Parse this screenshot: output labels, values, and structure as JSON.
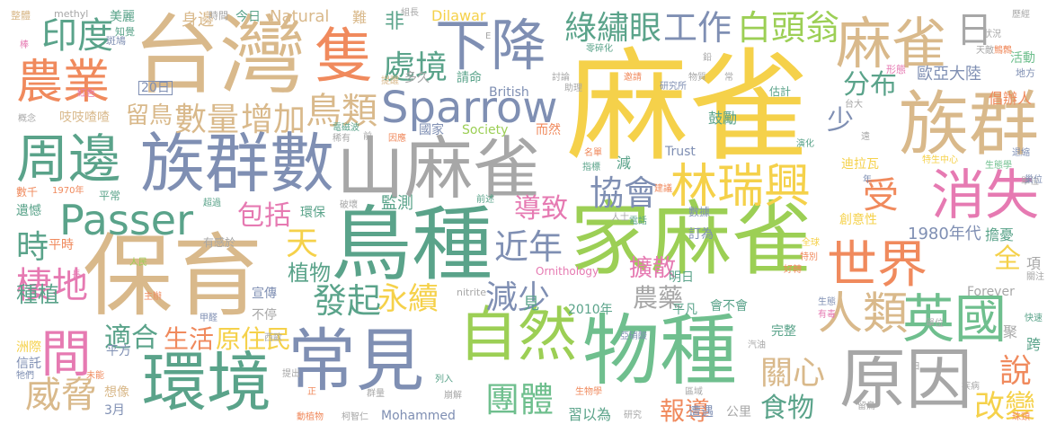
{
  "palette": {
    "gold": "#f5d14a",
    "tan": "#d9b98b",
    "green": "#6fbf8e",
    "teal": "#5aa38a",
    "slate": "#7f8fb3",
    "gray": "#a7a7a7",
    "pink": "#e67ab2",
    "orange": "#f08a5d",
    "lime": "#9ccf55"
  },
  "words": [
    {
      "text": "麻雀",
      "color": "gold"
    },
    {
      "text": "台灣",
      "color": "tan"
    },
    {
      "text": "保育",
      "color": "tan"
    },
    {
      "text": "鳥種",
      "color": "teal"
    },
    {
      "text": "家麻雀",
      "color": "lime"
    },
    {
      "text": "物種",
      "color": "green"
    },
    {
      "text": "族群",
      "color": "tan"
    },
    {
      "text": "山麻雀",
      "color": "gray"
    },
    {
      "text": "族群數",
      "color": "slate"
    },
    {
      "text": "常見",
      "color": "slate"
    },
    {
      "text": "環境",
      "color": "teal"
    },
    {
      "text": "原因",
      "color": "gray"
    },
    {
      "text": "自然",
      "color": "lime"
    },
    {
      "text": "隻",
      "color": "orange"
    },
    {
      "text": "下降",
      "color": "slate"
    },
    {
      "text": "麻雀",
      "color": "tan"
    },
    {
      "text": "周邊",
      "color": "teal"
    },
    {
      "text": "農業",
      "color": "orange"
    },
    {
      "text": "Sparrow",
      "color": "slate"
    },
    {
      "text": "Passer",
      "color": "teal"
    },
    {
      "text": "世界",
      "color": "orange"
    },
    {
      "text": "消失",
      "color": "pink"
    },
    {
      "text": "林瑞興",
      "color": "gold"
    },
    {
      "text": "英國",
      "color": "green"
    },
    {
      "text": "人類",
      "color": "tan"
    },
    {
      "text": "間",
      "color": "pink"
    },
    {
      "text": "印度",
      "color": "teal"
    },
    {
      "text": "綠繡眼",
      "color": "teal"
    },
    {
      "text": "工作",
      "color": "slate"
    },
    {
      "text": "白頭翁",
      "color": "lime"
    },
    {
      "text": "日",
      "color": "gray"
    },
    {
      "text": "處境",
      "color": "teal"
    },
    {
      "text": "鳥類",
      "color": "tan"
    },
    {
      "text": "數量",
      "color": "tan"
    },
    {
      "text": "增加",
      "color": "tan"
    },
    {
      "text": "留鳥",
      "color": "tan"
    },
    {
      "text": "協會",
      "color": "slate"
    },
    {
      "text": "棲地",
      "color": "pink"
    },
    {
      "text": "時",
      "color": "teal"
    },
    {
      "text": "威脅",
      "color": "tan"
    },
    {
      "text": "團體",
      "color": "green"
    },
    {
      "text": "發起",
      "color": "teal"
    },
    {
      "text": "永續",
      "color": "gold"
    },
    {
      "text": "減少",
      "color": "slate"
    },
    {
      "text": "導致",
      "color": "pink"
    },
    {
      "text": "近年",
      "color": "slate"
    },
    {
      "text": "包括",
      "color": "pink"
    },
    {
      "text": "受",
      "color": "orange"
    },
    {
      "text": "天",
      "color": "gold"
    },
    {
      "text": "關心",
      "color": "tan"
    },
    {
      "text": "說",
      "color": "orange"
    },
    {
      "text": "改變",
      "color": "gold"
    },
    {
      "text": "食物",
      "color": "teal"
    },
    {
      "text": "分布",
      "color": "teal"
    },
    {
      "text": "少",
      "color": "slate"
    },
    {
      "text": "生活",
      "color": "orange"
    },
    {
      "text": "原住民",
      "color": "gold"
    },
    {
      "text": "適合",
      "color": "teal"
    },
    {
      "text": "植物",
      "color": "teal"
    },
    {
      "text": "農藥",
      "color": "gray"
    },
    {
      "text": "擴散",
      "color": "pink"
    },
    {
      "text": "報導",
      "color": "orange"
    },
    {
      "text": "全",
      "color": "gold"
    },
    {
      "text": "種植",
      "color": "teal"
    },
    {
      "text": "歐亞大陸",
      "color": "slate"
    },
    {
      "text": "1980年代",
      "color": "slate"
    },
    {
      "text": "創意性",
      "color": "gold"
    },
    {
      "text": "迪拉瓦",
      "color": "gold"
    },
    {
      "text": "Natural",
      "color": "tan"
    },
    {
      "text": "Dilawar",
      "color": "gold"
    },
    {
      "text": "Society",
      "color": "lime"
    },
    {
      "text": "Trust",
      "color": "slate"
    },
    {
      "text": "British",
      "color": "slate"
    },
    {
      "text": "Mohammed",
      "color": "slate"
    },
    {
      "text": "Ornithology",
      "color": "pink"
    },
    {
      "text": "Forever",
      "color": "gray"
    },
    {
      "text": "methyl",
      "color": "gray"
    },
    {
      "text": "nitrite",
      "color": "gray"
    },
    {
      "text": "20日",
      "color": "slate"
    },
    {
      "text": "多久",
      "color": "gray"
    },
    {
      "text": "吱吱喳喳",
      "color": "tan"
    },
    {
      "text": "環保",
      "color": "teal"
    },
    {
      "text": "監測",
      "color": "teal"
    },
    {
      "text": "宣傳",
      "color": "slate"
    },
    {
      "text": "不停",
      "color": "gray"
    },
    {
      "text": "平常",
      "color": "teal"
    },
    {
      "text": "平時",
      "color": "orange"
    },
    {
      "text": "遺憾",
      "color": "teal"
    },
    {
      "text": "有感於",
      "color": "gray"
    },
    {
      "text": "數千",
      "color": "orange"
    },
    {
      "text": "1970年",
      "color": "orange"
    },
    {
      "text": "2010年",
      "color": "teal"
    },
    {
      "text": "平凡",
      "color": "teal"
    },
    {
      "text": "會不會",
      "color": "teal"
    },
    {
      "text": "明日",
      "color": "teal"
    },
    {
      "text": "完整",
      "color": "teal"
    },
    {
      "text": "訂為",
      "color": "slate"
    },
    {
      "text": "數據",
      "color": "slate"
    },
    {
      "text": "擔憂",
      "color": "teal"
    },
    {
      "text": "鼓勵",
      "color": "teal"
    },
    {
      "text": "倡辦人",
      "color": "orange"
    },
    {
      "text": "活動",
      "color": "green"
    },
    {
      "text": "地方",
      "color": "slate"
    },
    {
      "text": "美麗",
      "color": "teal"
    },
    {
      "text": "身邊",
      "color": "tan"
    },
    {
      "text": "今日",
      "color": "teal"
    },
    {
      "text": "非",
      "color": "teal"
    },
    {
      "text": "難",
      "color": "tan"
    },
    {
      "text": "請命",
      "color": "teal"
    },
    {
      "text": "國家",
      "color": "slate"
    },
    {
      "text": "而然",
      "color": "orange"
    },
    {
      "text": "習以為",
      "color": "teal"
    },
    {
      "text": "遭遇",
      "color": "slate"
    },
    {
      "text": "公里",
      "color": "gray"
    },
    {
      "text": "3月",
      "color": "slate"
    },
    {
      "text": "想像",
      "color": "tan"
    },
    {
      "text": "平方",
      "color": "slate"
    },
    {
      "text": "洲際",
      "color": "gold"
    },
    {
      "text": "信託",
      "color": "slate"
    },
    {
      "text": "跨",
      "color": "teal"
    },
    {
      "text": "項",
      "color": "gray"
    },
    {
      "text": "見",
      "color": "teal"
    },
    {
      "text": "減",
      "color": "teal"
    },
    {
      "text": "聚",
      "color": "gray"
    },
    {
      "text": "整體",
      "color": "tan"
    },
    {
      "text": "斑鳩",
      "color": "slate"
    },
    {
      "text": "知覺",
      "color": "teal"
    },
    {
      "text": "時間",
      "color": "gray"
    },
    {
      "text": "組長",
      "color": "gray"
    },
    {
      "text": "零碎化",
      "color": "teal"
    },
    {
      "text": "狀況",
      "color": "gray"
    },
    {
      "text": "歷經",
      "color": "gray"
    },
    {
      "text": "天敵",
      "color": "gray"
    },
    {
      "text": "邀請",
      "color": "orange"
    },
    {
      "text": "物質",
      "color": "gray"
    },
    {
      "text": "研究所",
      "color": "slate"
    },
    {
      "text": "估計",
      "color": "teal"
    },
    {
      "text": "形態",
      "color": "pink"
    },
    {
      "text": "台大",
      "color": "gray"
    },
    {
      "text": "紅色",
      "color": "pink"
    },
    {
      "text": "概念",
      "color": "gray"
    },
    {
      "text": "稀有",
      "color": "gray"
    },
    {
      "text": "提醒",
      "color": "tan"
    },
    {
      "text": "助理",
      "color": "gray"
    },
    {
      "text": "討論",
      "color": "gray"
    },
    {
      "text": "電磁波",
      "color": "teal"
    },
    {
      "text": "因應",
      "color": "orange"
    },
    {
      "text": "演化",
      "color": "teal"
    },
    {
      "text": "特生中心",
      "color": "gold"
    },
    {
      "text": "生態學",
      "color": "green"
    },
    {
      "text": "單位",
      "color": "gray"
    },
    {
      "text": "指標",
      "color": "teal"
    },
    {
      "text": "名單",
      "color": "orange"
    },
    {
      "text": "建議",
      "color": "orange"
    },
    {
      "text": "人士",
      "color": "gray"
    },
    {
      "text": "電話",
      "color": "teal"
    },
    {
      "text": "超過",
      "color": "teal"
    },
    {
      "text": "前述",
      "color": "teal"
    },
    {
      "text": "破壞",
      "color": "gray"
    },
    {
      "text": "全球",
      "color": "gold"
    },
    {
      "text": "好轉",
      "color": "orange"
    },
    {
      "text": "特別",
      "color": "orange"
    },
    {
      "text": "人民",
      "color": "lime"
    },
    {
      "text": "主辦",
      "color": "orange"
    },
    {
      "text": "甲醛",
      "color": "slate"
    },
    {
      "text": "西歐",
      "color": "gray"
    },
    {
      "text": "亞硝酸",
      "color": "slate"
    },
    {
      "text": "生態",
      "color": "slate"
    },
    {
      "text": "有毒",
      "color": "pink"
    },
    {
      "text": "單位",
      "color": "gray"
    },
    {
      "text": "快速",
      "color": "teal"
    },
    {
      "text": "汽油",
      "color": "gray"
    },
    {
      "text": "未能",
      "color": "orange"
    },
    {
      "text": "牠們",
      "color": "slate"
    },
    {
      "text": "提出",
      "color": "gray"
    },
    {
      "text": "群量",
      "color": "gray"
    },
    {
      "text": "崩解",
      "color": "gray"
    },
    {
      "text": "生物學",
      "color": "orange"
    },
    {
      "text": "區域",
      "color": "gray"
    },
    {
      "text": "列入",
      "color": "teal"
    },
    {
      "text": "動植物",
      "color": "orange"
    },
    {
      "text": "柯智仁",
      "color": "gray"
    },
    {
      "text": "研究",
      "color": "gray"
    },
    {
      "text": "疾病",
      "color": "gray"
    },
    {
      "text": "珠頸",
      "color": "orange"
    },
    {
      "text": "退縮",
      "color": "slate"
    },
    {
      "text": "巢位",
      "color": "slate"
    },
    {
      "text": "關注",
      "color": "gray"
    },
    {
      "text": "留鳥",
      "color": "gray"
    },
    {
      "text": "鷦鷯",
      "color": "orange"
    },
    {
      "text": "鉛",
      "color": "gray"
    },
    {
      "text": "前",
      "color": "gray"
    },
    {
      "text": "正",
      "color": "orange"
    },
    {
      "text": "年",
      "color": "slate"
    },
    {
      "text": "遠",
      "color": "gray"
    },
    {
      "text": "日",
      "color": "gray"
    },
    {
      "text": "長",
      "color": "pink"
    },
    {
      "text": "E",
      "color": "gray"
    },
    {
      "text": "棒",
      "color": "pink"
    },
    {
      "text": "常",
      "color": "gray"
    }
  ]
}
